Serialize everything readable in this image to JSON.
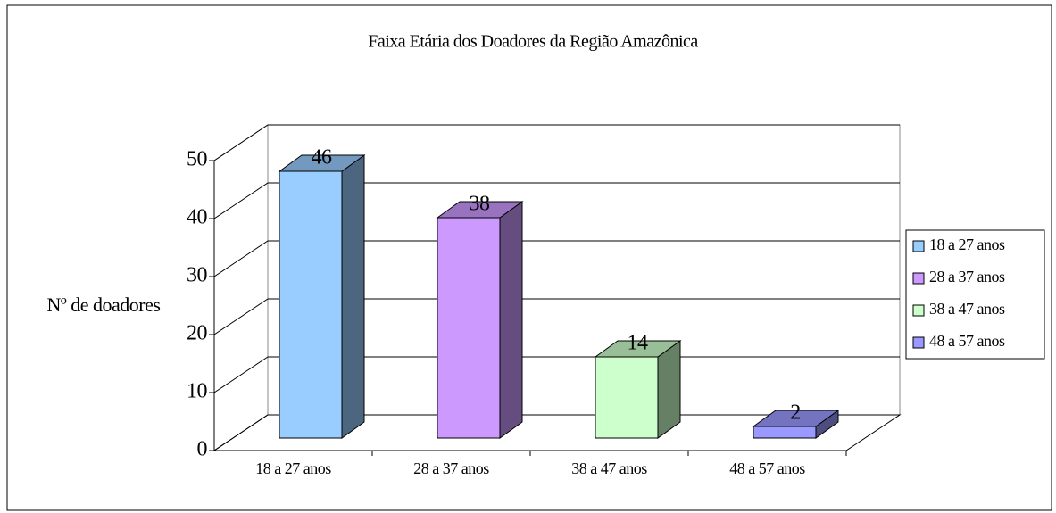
{
  "chart_data": {
    "type": "bar3d",
    "title": "Faixa Etária dos Doadores da Região Amazônica",
    "ylabel": "Nº de doadores",
    "categories": [
      "18 a 27 anos",
      "28 a 37 anos",
      "38 a 47 anos",
      "48 a 57 anos"
    ],
    "values": [
      46,
      38,
      14,
      2
    ],
    "colors": [
      "#99ccff",
      "#cc99ff",
      "#ccffcc",
      "#9999ff"
    ],
    "ylim": [
      0,
      50
    ],
    "yticks": [
      0,
      10,
      20,
      30,
      40,
      50
    ],
    "grid": true,
    "legend": "right"
  }
}
